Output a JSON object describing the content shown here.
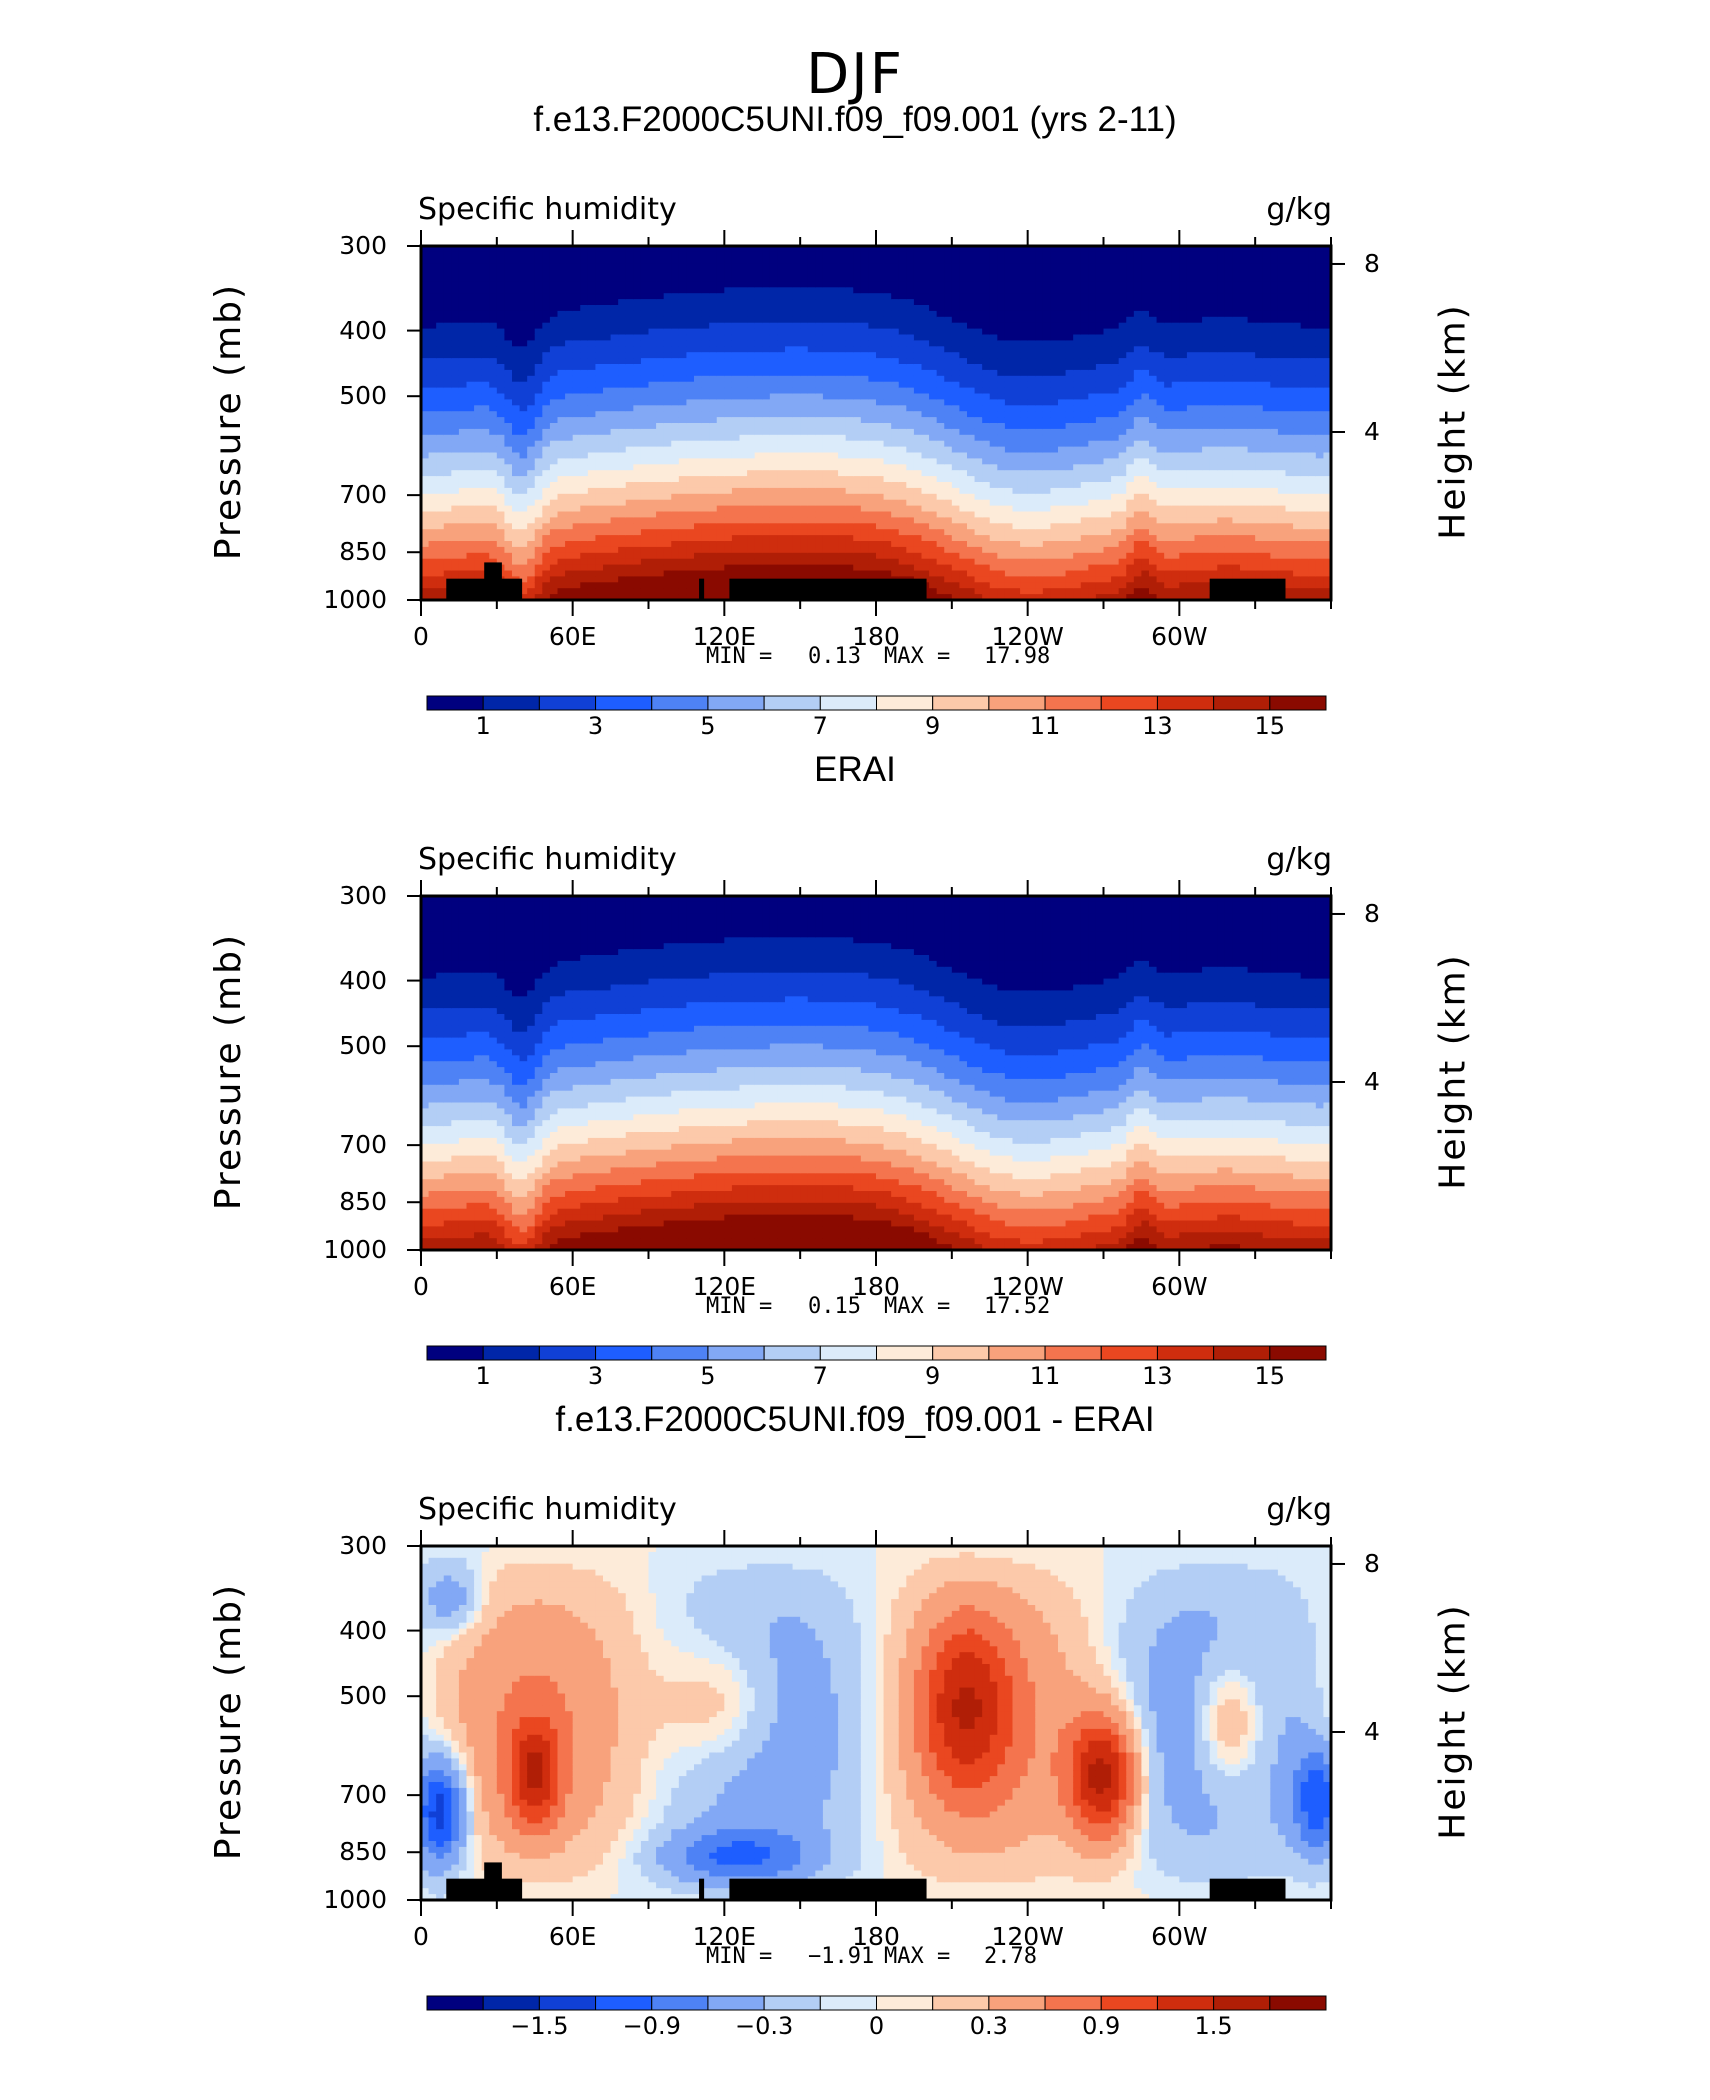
{
  "page_title": "DJF",
  "colors": {
    "model_obs_levels": [
      "#00007f",
      "#0026a8",
      "#1040d6",
      "#1e5eff",
      "#4e82f5",
      "#82a8f5",
      "#b3cef5",
      "#dbebfa",
      "#fdebd9",
      "#fcc9aa",
      "#f8a27c",
      "#f4744e",
      "#ea4720",
      "#cf2d0e",
      "#b01e06",
      "#8a0a00"
    ],
    "diff_levels": [
      "#00007f",
      "#0026a8",
      "#1040d6",
      "#1e5eff",
      "#4e82f5",
      "#82a8f5",
      "#b3cef5",
      "#dbebfa",
      "#fdebd9",
      "#fcc9aa",
      "#f8a27c",
      "#f4744e",
      "#ea4720",
      "#cf2d0e",
      "#b01e06",
      "#8a0a00"
    ],
    "topography": "#000000"
  },
  "panels": [
    {
      "title": "f.e13.F2000C5UNI.f09_f09.001 (yrs 2-11)",
      "left_label": "Specific humidity",
      "right_label": "g/kg",
      "ylabel": "Pressure (mb)",
      "ylabel2": "Height (km)",
      "yticks": [
        "300",
        "400",
        "500",
        "700",
        "850",
        "1000"
      ],
      "hticks": [
        "8",
        "4"
      ],
      "xticks": [
        "0",
        "60E",
        "120E",
        "180",
        "120W",
        "60W"
      ],
      "min_label": "MIN =",
      "min_value": "0.13",
      "max_label": "MAX =",
      "max_value": "17.98",
      "colorbar_ticks": [
        "1",
        "3",
        "5",
        "7",
        "9",
        "11",
        "13",
        "15"
      ]
    },
    {
      "title": "ERAI",
      "left_label": "Specific humidity",
      "right_label": "g/kg",
      "ylabel": "Pressure (mb)",
      "ylabel2": "Height (km)",
      "yticks": [
        "300",
        "400",
        "500",
        "700",
        "850",
        "1000"
      ],
      "hticks": [
        "8",
        "4"
      ],
      "xticks": [
        "0",
        "60E",
        "120E",
        "180",
        "120W",
        "60W"
      ],
      "min_label": "MIN =",
      "min_value": "0.15",
      "max_label": "MAX =",
      "max_value": "17.52",
      "colorbar_ticks": [
        "1",
        "3",
        "5",
        "7",
        "9",
        "11",
        "13",
        "15"
      ]
    },
    {
      "title": "f.e13.F2000C5UNI.f09_f09.001 - ERAI",
      "left_label": "Specific humidity",
      "right_label": "g/kg",
      "ylabel": "Pressure (mb)",
      "ylabel2": "Height (km)",
      "yticks": [
        "300",
        "400",
        "500",
        "700",
        "850",
        "1000"
      ],
      "hticks": [
        "8",
        "4"
      ],
      "xticks": [
        "0",
        "60E",
        "120E",
        "180",
        "120W",
        "60W"
      ],
      "min_label": "MIN =",
      "min_value": "−1.91",
      "max_label": "MAX =",
      "max_value": "2.78",
      "colorbar_ticks": [
        "−1.5",
        "−0.9",
        "−0.3",
        "0",
        "0.3",
        "0.9",
        "1.5"
      ]
    }
  ],
  "chart_data": [
    {
      "type": "heatmap",
      "title": "f.e13.F2000C5UNI.f09_f09.001 (yrs 2-11)",
      "variable": "Specific humidity",
      "units": "g/kg",
      "xlabel": "",
      "ylabel": "Pressure (mb)",
      "ylabel2": "Height (km)",
      "x_ticks": [
        "0",
        "60E",
        "120E",
        "180",
        "120W",
        "60W"
      ],
      "y_ticks": [
        300,
        400,
        500,
        700,
        850,
        1000
      ],
      "y2_ticks": [
        8,
        4
      ],
      "contour_levels": [
        1,
        2,
        3,
        4,
        5,
        6,
        7,
        8,
        9,
        10,
        11,
        12,
        13,
        14,
        15
      ],
      "colorbar_labels": [
        1,
        3,
        5,
        7,
        9,
        11,
        13,
        15
      ],
      "min": 0.13,
      "max": 17.98,
      "topography": "black"
    },
    {
      "type": "heatmap",
      "title": "ERAI",
      "variable": "Specific humidity",
      "units": "g/kg",
      "xlabel": "",
      "ylabel": "Pressure (mb)",
      "ylabel2": "Height (km)",
      "x_ticks": [
        "0",
        "60E",
        "120E",
        "180",
        "120W",
        "60W"
      ],
      "y_ticks": [
        300,
        400,
        500,
        700,
        850,
        1000
      ],
      "y2_ticks": [
        8,
        4
      ],
      "contour_levels": [
        1,
        2,
        3,
        4,
        5,
        6,
        7,
        8,
        9,
        10,
        11,
        12,
        13,
        14,
        15
      ],
      "colorbar_labels": [
        1,
        3,
        5,
        7,
        9,
        11,
        13,
        15
      ],
      "min": 0.15,
      "max": 17.52
    },
    {
      "type": "heatmap",
      "title": "f.e13.F2000C5UNI.f09_f09.001 - ERAI",
      "variable": "Specific humidity",
      "units": "g/kg",
      "xlabel": "",
      "ylabel": "Pressure (mb)",
      "ylabel2": "Height (km)",
      "x_ticks": [
        "0",
        "60E",
        "120E",
        "180",
        "120W",
        "60W"
      ],
      "y_ticks": [
        300,
        400,
        500,
        700,
        850,
        1000
      ],
      "y2_ticks": [
        8,
        4
      ],
      "contour_levels": [
        -1.8,
        -1.5,
        -1.2,
        -0.9,
        -0.6,
        -0.3,
        -0.1,
        0,
        0.1,
        0.3,
        0.6,
        0.9,
        1.2,
        1.5,
        1.8
      ],
      "colorbar_labels": [
        -1.5,
        -0.9,
        -0.3,
        0,
        0.3,
        0.9,
        1.5
      ],
      "min": -1.91,
      "max": 2.78,
      "topography": "black"
    }
  ]
}
